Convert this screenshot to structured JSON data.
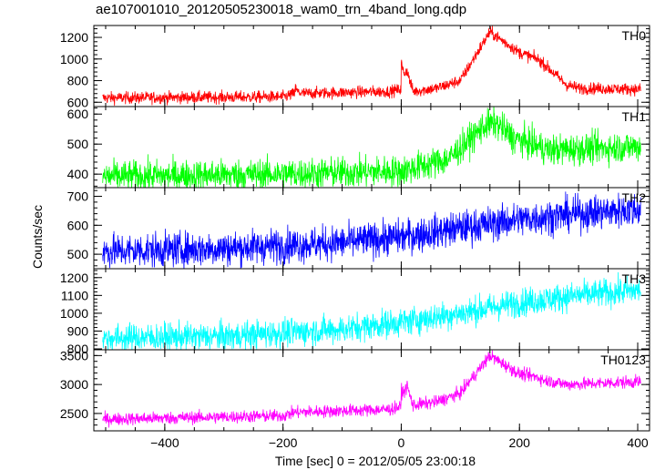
{
  "title": "ae107001010_20120505230018_wam0_trn_4band_long.qdp",
  "chart_data": {
    "type": "line",
    "title": "ae107001010_20120505230018_wam0_trn_4band_long.qdp",
    "xlabel": "Time [sec] 0 = 2012/05/05 23:00:18",
    "ylabel": "Counts/sec",
    "xlim": [
      -520,
      420
    ],
    "x_ticks": [
      -400,
      -200,
      0,
      200,
      400
    ],
    "x_tick_labels": [
      "−400",
      "−200",
      "0",
      "200",
      "400"
    ],
    "x_range_data": [
      -505,
      405
    ],
    "grid": false,
    "panels": [
      {
        "label": "TH0",
        "color": "#ff0000",
        "ylim": [
          560,
          1310
        ],
        "y_ticks": [
          600,
          800,
          1000,
          1200
        ],
        "y_tick_labels": [
          "600",
          "800",
          "1000",
          "1200"
        ],
        "profile": [
          [
            -505,
            640
          ],
          [
            -200,
            650
          ],
          [
            -180,
            680
          ],
          [
            -20,
            700
          ],
          [
            0,
            720
          ],
          [
            10,
            880
          ],
          [
            20,
            700
          ],
          [
            60,
            730
          ],
          [
            100,
            800
          ],
          [
            150,
            1250
          ],
          [
            200,
            1060
          ],
          [
            230,
            1000
          ],
          [
            240,
            960
          ],
          [
            280,
            760
          ],
          [
            300,
            730
          ],
          [
            405,
            720
          ]
        ],
        "spikes": [
          [
            -180,
            60
          ],
          [
            0,
            260
          ]
        ],
        "noise": 28
      },
      {
        "label": "TH1",
        "color": "#00ff00",
        "ylim": [
          355,
          625
        ],
        "y_ticks": [
          400,
          500,
          600
        ],
        "y_tick_labels": [
          "400",
          "500",
          "600"
        ],
        "profile": [
          [
            -505,
            392
          ],
          [
            -200,
            400
          ],
          [
            0,
            410
          ],
          [
            80,
            450
          ],
          [
            140,
            560
          ],
          [
            160,
            570
          ],
          [
            190,
            520
          ],
          [
            250,
            480
          ],
          [
            405,
            492
          ]
        ],
        "spikes": [],
        "noise": 26
      },
      {
        "label": "TH2",
        "color": "#0000ff",
        "ylim": [
          450,
          730
        ],
        "y_ticks": [
          500,
          600,
          700
        ],
        "y_tick_labels": [
          "500",
          "600",
          "700"
        ],
        "profile": [
          [
            -505,
            510
          ],
          [
            -300,
            520
          ],
          [
            -100,
            540
          ],
          [
            0,
            560
          ],
          [
            100,
            590
          ],
          [
            200,
            620
          ],
          [
            300,
            640
          ],
          [
            405,
            655
          ]
        ],
        "spikes": [],
        "noise": 30
      },
      {
        "label": "TH3",
        "color": "#00ffff",
        "ylim": [
          795,
          1250
        ],
        "y_ticks": [
          800,
          900,
          1000,
          1100,
          1200
        ],
        "y_tick_labels": [
          "800",
          "900",
          "1000",
          "1100",
          "1200"
        ],
        "profile": [
          [
            -505,
            860
          ],
          [
            -300,
            870
          ],
          [
            -100,
            910
          ],
          [
            0,
            950
          ],
          [
            100,
            1000
          ],
          [
            200,
            1060
          ],
          [
            300,
            1100
          ],
          [
            405,
            1130
          ]
        ],
        "spikes": [],
        "noise": 40
      },
      {
        "label": "TH0123",
        "color": "#ff00ff",
        "ylim": [
          2200,
          3600
        ],
        "y_ticks": [
          2500,
          3000,
          3500
        ],
        "y_tick_labels": [
          "2500",
          "3000",
          "3500"
        ],
        "profile": [
          [
            -505,
            2400
          ],
          [
            -200,
            2460
          ],
          [
            -180,
            2520
          ],
          [
            -20,
            2570
          ],
          [
            0,
            2620
          ],
          [
            10,
            2960
          ],
          [
            20,
            2640
          ],
          [
            60,
            2700
          ],
          [
            100,
            2850
          ],
          [
            150,
            3500
          ],
          [
            200,
            3180
          ],
          [
            230,
            3130
          ],
          [
            240,
            3080
          ],
          [
            280,
            3000
          ],
          [
            405,
            3050
          ]
        ],
        "spikes": [
          [
            0,
            300
          ]
        ],
        "noise": 55
      }
    ]
  }
}
